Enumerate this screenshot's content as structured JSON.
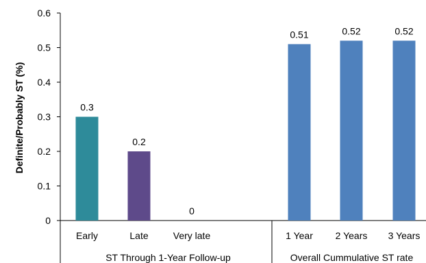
{
  "chart_data": {
    "type": "bar",
    "ylabel": "Definite/Probably ST (%)",
    "ylim": [
      0,
      0.6
    ],
    "yticks": [
      "0",
      "0.1",
      "0.2",
      "0.3",
      "0.4",
      "0.5",
      "0.6"
    ],
    "groups": [
      {
        "label": "ST Through 1-Year Follow-up",
        "categories": [
          "Early",
          "Late",
          "Very late"
        ],
        "values": [
          0.3,
          0.2,
          0
        ],
        "value_labels": [
          "0.3",
          "0.2",
          "0"
        ],
        "colors": [
          "#2e8b9a",
          "#5e4a8a",
          "#2e8b9a"
        ]
      },
      {
        "label": "Overall Cummulative ST rate",
        "categories": [
          "1 Year",
          "2 Years",
          "3 Years"
        ],
        "values": [
          0.51,
          0.52,
          0.52
        ],
        "value_labels": [
          "0.51",
          "0.52",
          "0.52"
        ],
        "colors": [
          "#4f81bd",
          "#4f81bd",
          "#4f81bd"
        ]
      }
    ],
    "grid": false,
    "legend": "none"
  }
}
